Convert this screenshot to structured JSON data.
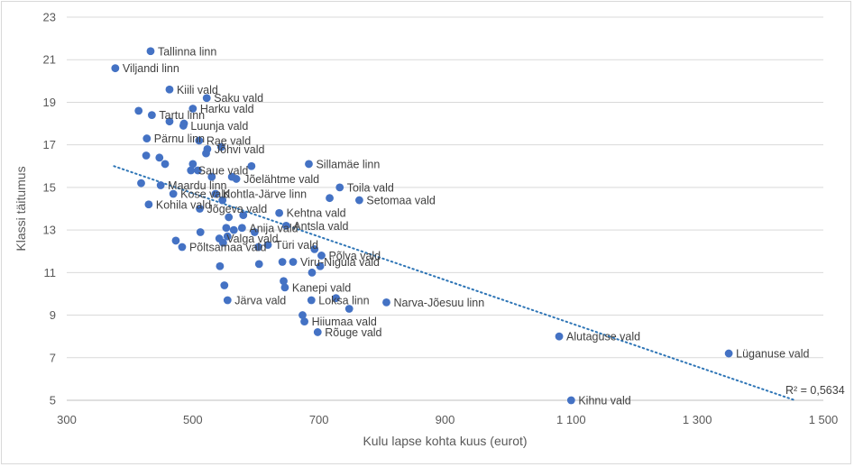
{
  "chart_data": {
    "type": "scatter",
    "title": "",
    "xlabel": "Kulu lapse kohta kuus (eurot)",
    "ylabel": "Klassi täitumus",
    "xlim": [
      300,
      1500
    ],
    "ylim": [
      5,
      23
    ],
    "xticks": [
      300,
      500,
      700,
      900,
      1100,
      1300,
      1500
    ],
    "xtick_labels": [
      "300",
      "500",
      "700",
      "900",
      "1 100",
      "1 300",
      "1 500"
    ],
    "yticks": [
      5,
      7,
      9,
      11,
      13,
      15,
      17,
      19,
      21,
      23
    ],
    "ytick_labels": [
      "5",
      "7",
      "9",
      "11",
      "13",
      "15",
      "17",
      "19",
      "21",
      "23"
    ],
    "grid": "horizontal",
    "point_color": "#4472c4",
    "trendline": {
      "type": "linear",
      "style": "dotted",
      "color": "#2e75b6",
      "x": [
        375,
        1455
      ],
      "y": [
        16.0,
        5.0
      ],
      "r2_label": "R² = 0,5634"
    },
    "points": [
      {
        "x": 433,
        "y": 21.4,
        "label": "Tallinna linn"
      },
      {
        "x": 377,
        "y": 20.6,
        "label": "Viljandi linn"
      },
      {
        "x": 463,
        "y": 19.6,
        "label": "Kiili vald"
      },
      {
        "x": 522,
        "y": 19.2,
        "label": "Saku vald"
      },
      {
        "x": 500,
        "y": 18.7,
        "label": "Harku vald"
      },
      {
        "x": 414,
        "y": 18.6,
        "label": ""
      },
      {
        "x": 435,
        "y": 18.4,
        "label": "Tartu linn"
      },
      {
        "x": 463,
        "y": 18.1,
        "label": ""
      },
      {
        "x": 485,
        "y": 17.9,
        "label": "Luunja vald"
      },
      {
        "x": 486,
        "y": 18.0,
        "label": ""
      },
      {
        "x": 427,
        "y": 17.3,
        "label": "Pärnu linn"
      },
      {
        "x": 510,
        "y": 17.2,
        "label": "Rae vald"
      },
      {
        "x": 545,
        "y": 16.9,
        "label": ""
      },
      {
        "x": 523,
        "y": 16.8,
        "label": "Jõhvi vald"
      },
      {
        "x": 521,
        "y": 16.6,
        "label": ""
      },
      {
        "x": 426,
        "y": 16.5,
        "label": ""
      },
      {
        "x": 447,
        "y": 16.4,
        "label": ""
      },
      {
        "x": 456,
        "y": 16.1,
        "label": ""
      },
      {
        "x": 500,
        "y": 16.1,
        "label": ""
      },
      {
        "x": 593,
        "y": 16.0,
        "label": ""
      },
      {
        "x": 684,
        "y": 16.1,
        "label": "Sillamäe linn"
      },
      {
        "x": 497,
        "y": 15.8,
        "label": "Saue vald"
      },
      {
        "x": 508,
        "y": 15.8,
        "label": ""
      },
      {
        "x": 562,
        "y": 15.5,
        "label": ""
      },
      {
        "x": 569,
        "y": 15.4,
        "label": "Jõelähtme vald"
      },
      {
        "x": 530,
        "y": 15.5,
        "label": ""
      },
      {
        "x": 418,
        "y": 15.2,
        "label": ""
      },
      {
        "x": 449,
        "y": 15.1,
        "label": "Maardu linn"
      },
      {
        "x": 733,
        "y": 15.0,
        "label": "Toila vald"
      },
      {
        "x": 469,
        "y": 14.7,
        "label": "Kose vald"
      },
      {
        "x": 536,
        "y": 14.7,
        "label": "Kohtla-Järve linn"
      },
      {
        "x": 547,
        "y": 14.4,
        "label": ""
      },
      {
        "x": 717,
        "y": 14.5,
        "label": ""
      },
      {
        "x": 764,
        "y": 14.4,
        "label": "Setomaa vald"
      },
      {
        "x": 430,
        "y": 14.2,
        "label": "Kohila vald"
      },
      {
        "x": 511,
        "y": 14.0,
        "label": "Jõgeva vald"
      },
      {
        "x": 637,
        "y": 13.8,
        "label": "Kehtna vald"
      },
      {
        "x": 580,
        "y": 13.7,
        "label": ""
      },
      {
        "x": 557,
        "y": 13.6,
        "label": ""
      },
      {
        "x": 648,
        "y": 13.2,
        "label": "Antsla vald"
      },
      {
        "x": 578,
        "y": 13.1,
        "label": "Anija vald"
      },
      {
        "x": 553,
        "y": 13.1,
        "label": ""
      },
      {
        "x": 565,
        "y": 13.0,
        "label": ""
      },
      {
        "x": 598,
        "y": 12.9,
        "label": ""
      },
      {
        "x": 512,
        "y": 12.9,
        "label": ""
      },
      {
        "x": 555,
        "y": 12.7,
        "label": ""
      },
      {
        "x": 542,
        "y": 12.6,
        "label": "Valga vald"
      },
      {
        "x": 473,
        "y": 12.5,
        "label": ""
      },
      {
        "x": 548,
        "y": 12.4,
        "label": ""
      },
      {
        "x": 619,
        "y": 12.3,
        "label": "Türi vald"
      },
      {
        "x": 483,
        "y": 12.2,
        "label": "Põltsamaa vald"
      },
      {
        "x": 604,
        "y": 12.2,
        "label": ""
      },
      {
        "x": 693,
        "y": 12.1,
        "label": ""
      },
      {
        "x": 704,
        "y": 11.8,
        "label": "Põlva vald"
      },
      {
        "x": 642,
        "y": 11.5,
        "label": ""
      },
      {
        "x": 659,
        "y": 11.5,
        "label": "Viru-Nigula vald"
      },
      {
        "x": 605,
        "y": 11.4,
        "label": ""
      },
      {
        "x": 702,
        "y": 11.3,
        "label": ""
      },
      {
        "x": 543,
        "y": 11.3,
        "label": ""
      },
      {
        "x": 689,
        "y": 11.0,
        "label": ""
      },
      {
        "x": 644,
        "y": 10.6,
        "label": ""
      },
      {
        "x": 550,
        "y": 10.4,
        "label": ""
      },
      {
        "x": 646,
        "y": 10.3,
        "label": "Kanepi vald"
      },
      {
        "x": 555,
        "y": 9.7,
        "label": "Järva vald"
      },
      {
        "x": 688,
        "y": 9.7,
        "label": "Loksa linn"
      },
      {
        "x": 727,
        "y": 9.8,
        "label": ""
      },
      {
        "x": 807,
        "y": 9.6,
        "label": "Narva-Jõesuu linn"
      },
      {
        "x": 748,
        "y": 9.3,
        "label": ""
      },
      {
        "x": 674,
        "y": 9.0,
        "label": ""
      },
      {
        "x": 677,
        "y": 8.7,
        "label": "Hiiumaa vald"
      },
      {
        "x": 698,
        "y": 8.2,
        "label": "Rõuge vald"
      },
      {
        "x": 1081,
        "y": 8.0,
        "label": "Alutaguse vald"
      },
      {
        "x": 1350,
        "y": 7.2,
        "label": "Lüganuse vald"
      },
      {
        "x": 1100,
        "y": 5.0,
        "label": "Kihnu vald"
      }
    ]
  }
}
